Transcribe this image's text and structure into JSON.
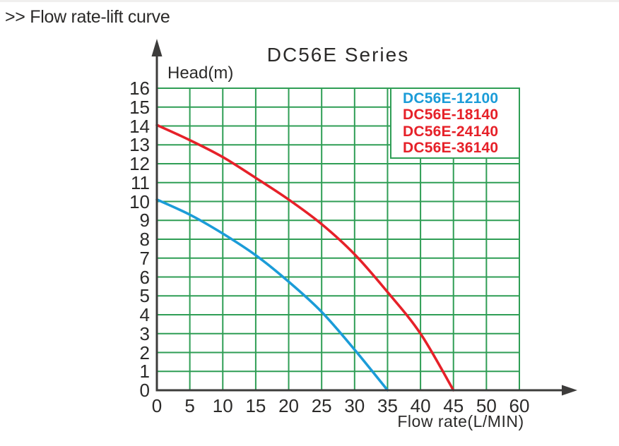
{
  "page": {
    "header": ">> Flow rate-lift curve"
  },
  "colors": {
    "ink": "#2b2a29",
    "grid": "#2f9e55",
    "axis": "#3d3c3b",
    "blue": "#1b9cd8",
    "red": "#e62129"
  },
  "chart_data": {
    "type": "line",
    "title": "DC56E Series",
    "ylabel": "Head(m)",
    "xlabel": "Flow rate(L/MIN)",
    "ylim": [
      0,
      16
    ],
    "xlim": [
      0,
      60
    ],
    "grid": true,
    "y_ticks": [
      0,
      1,
      2,
      3,
      4,
      5,
      6,
      7,
      8,
      9,
      10,
      11,
      12,
      13,
      14,
      15,
      16
    ],
    "x_tick_labels": [
      "0",
      "5",
      "10",
      "15",
      "20",
      "25",
      "30",
      "35",
      "40",
      "45",
      "50",
      "60"
    ],
    "x_tick_step_value": 5,
    "legend_position": "top-right",
    "legend": [
      {
        "label": "DC56E-12100",
        "color": "#1b9cd8"
      },
      {
        "label": "DC56E-18140",
        "color": "#e62129"
      },
      {
        "label": "DC56E-24140",
        "color": "#e62129"
      },
      {
        "label": "DC56E-36140",
        "color": "#e62129"
      }
    ],
    "series": [
      {
        "name": "DC56E-12100",
        "color": "#1b9cd8",
        "points": [
          [
            0,
            10.1
          ],
          [
            5,
            9.3
          ],
          [
            10,
            8.3
          ],
          [
            15,
            7.15
          ],
          [
            20,
            5.75
          ],
          [
            25,
            4.15
          ],
          [
            30,
            2.15
          ],
          [
            35,
            0
          ]
        ]
      },
      {
        "name": "DC56E-18140 / DC56E-24140 / DC56E-36140",
        "color": "#e62129",
        "points": [
          [
            0,
            14.05
          ],
          [
            5,
            13.25
          ],
          [
            10,
            12.35
          ],
          [
            15,
            11.25
          ],
          [
            20,
            10.1
          ],
          [
            25,
            8.8
          ],
          [
            30,
            7.2
          ],
          [
            35,
            5.2
          ],
          [
            40,
            3.0
          ],
          [
            45,
            0
          ]
        ]
      }
    ]
  }
}
